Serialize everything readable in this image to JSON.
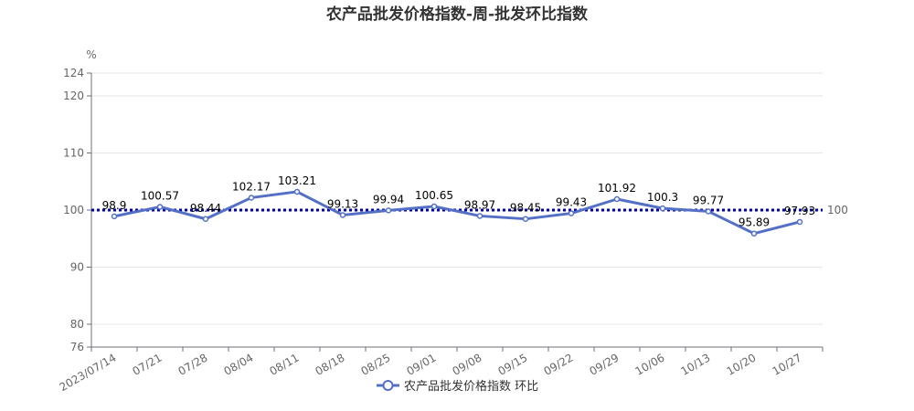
{
  "chart_data": {
    "type": "line",
    "title": "农产品批发价格指数-周-批发环比指数",
    "ylabel": "%",
    "ylim": [
      76,
      124
    ],
    "yticks": [
      76,
      80,
      90,
      100,
      110,
      120,
      124
    ],
    "grid": true,
    "legend_position": "bottom-center",
    "categories": [
      "2023/07/14",
      "07/21",
      "07/28",
      "08/04",
      "08/11",
      "08/18",
      "08/25",
      "09/01",
      "09/08",
      "09/15",
      "09/22",
      "09/29",
      "10/06",
      "10/13",
      "10/20",
      "10/27"
    ],
    "series": [
      {
        "name": "农产品批发价格指数 环比",
        "values": [
          98.9,
          100.57,
          98.44,
          102.17,
          103.21,
          99.13,
          99.94,
          100.65,
          98.97,
          98.45,
          99.43,
          101.92,
          100.3,
          99.77,
          95.89,
          97.93
        ],
        "color": "#5470c6"
      }
    ],
    "reference_line": {
      "value": 100,
      "label": "100",
      "color": "#0000aa"
    }
  }
}
